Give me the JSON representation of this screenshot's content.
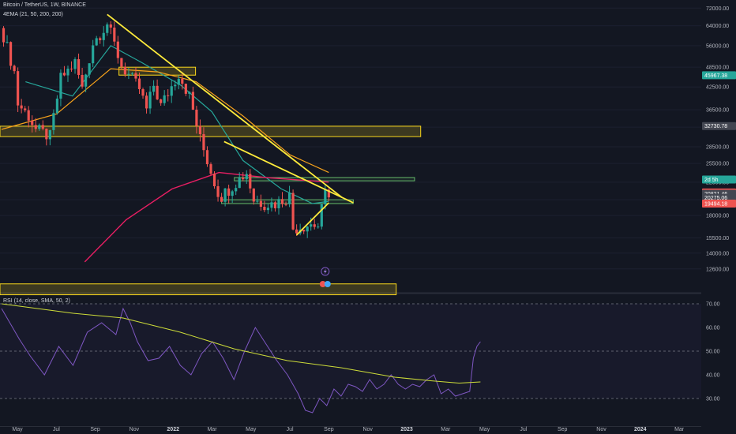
{
  "header": {
    "symbol": "Bitcoin / TetherUS, 1W, BINANCE",
    "ema_label": "4EMA (21, 50, 200, 200)",
    "rsi_label": "RSI (14, close, SMA, 50, 2)"
  },
  "colors": {
    "background": "#131722",
    "up": "#26a69a",
    "down": "#ef5350",
    "trendline": "#ffeb3b",
    "ema21": "#26a69a",
    "ema50": "#f7a21b",
    "ema200": "#e91e63",
    "zone_yellow": "#f9d71c",
    "zone_green": "#66bb6a",
    "rsi_line": "#7e57c2",
    "rsi_ma": "#cddc39"
  },
  "chart_data": [
    {
      "type": "candlestick",
      "title": "Bitcoin / TetherUS, 1W, BINANCE",
      "scale": "log",
      "ylim": [
        10800,
        76000
      ],
      "x_ticks": [
        "May",
        "Jul",
        "Sep",
        "Nov",
        "2022",
        "Mar",
        "May",
        "Jul",
        "Sep",
        "Nov",
        "2023",
        "Mar",
        "May",
        "Jul",
        "Sep",
        "Nov",
        "2024",
        "Mar"
      ],
      "y_ticks": [
        72000,
        64000,
        56000,
        48500,
        42500,
        36500,
        32500,
        28500,
        25500,
        22500,
        20000,
        18000,
        15500,
        14000,
        12600
      ],
      "y_tick_labels": [
        "72000.00",
        "64000.00",
        "56000.00",
        "48500.00",
        "42500.00",
        "36500.00",
        "32500.00",
        "28500.00",
        "25500.00",
        "22500.00",
        "20000.00",
        "18000.00",
        "15500.00",
        "14000.00",
        "12600.00"
      ],
      "price_labels": [
        {
          "value": 45967.38,
          "text": "45967.38",
          "color": "#26a69a"
        },
        {
          "value": 32730.78,
          "text": "32730.78",
          "color": "#434651"
        },
        {
          "value": 22900,
          "text": "2d 5h",
          "color": "#26a69a"
        },
        {
          "value": 21000.63,
          "text": "21000.63",
          "color": "#ef5350"
        },
        {
          "value": 20821.46,
          "text": "20821.46",
          "color": "#434651"
        },
        {
          "value": 20275.06,
          "text": "20275.06",
          "color": "#434651"
        },
        {
          "value": 19494.18,
          "text": "19494.18",
          "color": "#ef5350"
        }
      ],
      "anchors": [
        [
          "2021-04-19",
          60000
        ],
        [
          "2021-05-10",
          47000
        ],
        [
          "2021-05-17",
          38000
        ],
        [
          "2021-06-07",
          35000
        ],
        [
          "2021-06-21",
          32000
        ],
        [
          "2021-07-19",
          30500
        ],
        [
          "2021-08-09",
          45000
        ],
        [
          "2021-09-06",
          50000
        ],
        [
          "2021-09-20",
          42000
        ],
        [
          "2021-10-11",
          57000
        ],
        [
          "2021-11-08",
          65000
        ],
        [
          "2021-12-06",
          49000
        ],
        [
          "2022-01-10",
          42000
        ],
        [
          "2022-01-24",
          36500
        ],
        [
          "2022-02-07",
          43000
        ],
        [
          "2022-02-21",
          37500
        ],
        [
          "2022-03-28",
          46500
        ],
        [
          "2022-04-18",
          40000
        ],
        [
          "2022-05-09",
          30000
        ],
        [
          "2022-06-13",
          21000
        ],
        [
          "2022-06-20",
          20500
        ],
        [
          "2022-07-18",
          22500
        ],
        [
          "2022-08-08",
          24000
        ],
        [
          "2022-08-22",
          20000
        ],
        [
          "2022-09-12",
          19500
        ],
        [
          "2022-10-03",
          19500
        ],
        [
          "2022-10-31",
          20500
        ],
        [
          "2022-11-07",
          16500
        ],
        [
          "2022-12-12",
          17000
        ],
        [
          "2022-12-26",
          16800
        ],
        [
          "2023-01-09",
          20800
        ],
        [
          "2023-01-16",
          21000
        ]
      ],
      "ema_21": [
        [
          "2021-06-01",
          44000
        ],
        [
          "2021-09-01",
          40000
        ],
        [
          "2021-11-15",
          56000
        ],
        [
          "2022-01-15",
          50000
        ],
        [
          "2022-04-01",
          43000
        ],
        [
          "2022-06-01",
          36000
        ],
        [
          "2022-08-01",
          26000
        ],
        [
          "2022-10-15",
          21500
        ],
        [
          "2022-12-15",
          19500
        ],
        [
          "2023-01-16",
          19800
        ]
      ],
      "ema_50": [
        [
          "2021-04-15",
          32000
        ],
        [
          "2021-08-01",
          35500
        ],
        [
          "2021-11-15",
          48000
        ],
        [
          "2022-02-15",
          47000
        ],
        [
          "2022-05-01",
          44000
        ],
        [
          "2022-08-01",
          35000
        ],
        [
          "2022-11-01",
          27000
        ],
        [
          "2023-01-16",
          24000
        ]
      ],
      "ema_200": [
        [
          "2021-09-25",
          13200
        ],
        [
          "2021-12-15",
          17500
        ],
        [
          "2022-03-15",
          21500
        ],
        [
          "2022-06-15",
          24000
        ],
        [
          "2022-09-15",
          23200
        ],
        [
          "2023-01-16",
          22500
        ]
      ],
      "zones": [
        {
          "x": [
            "2021-04-12",
            "2023-07-15"
          ],
          "y": [
            30500,
            32700
          ],
          "color": "yellow"
        },
        {
          "x": [
            "2021-04-12",
            "2023-05-28"
          ],
          "y": [
            10600,
            11400
          ],
          "color": "yellow"
        },
        {
          "x": [
            "2021-12-01",
            "2022-04-30"
          ],
          "y": [
            46000,
            48500
          ],
          "color": "yellow"
        },
        {
          "x": [
            "2022-07-15",
            "2023-07-03"
          ],
          "y": [
            22700,
            23200
          ],
          "color": "green"
        },
        {
          "x": [
            "2022-06-20",
            "2023-03-05"
          ],
          "y": [
            19500,
            20000
          ],
          "color": "green"
        }
      ],
      "trendlines": [
        {
          "from": [
            "2021-11-08",
            69000
          ],
          "to": [
            "2023-02-11",
            20300
          ]
        },
        {
          "from": [
            "2022-06-25",
            29500
          ],
          "to": [
            "2023-03-05",
            19600
          ]
        },
        {
          "from": [
            "2022-11-14",
            15800
          ],
          "to": [
            "2023-01-16",
            19600
          ]
        }
      ]
    },
    {
      "type": "line",
      "title": "RSI (14, close, SMA, 50, 2)",
      "ylim": [
        20,
        74
      ],
      "y_ticks": [
        70,
        60,
        50,
        40,
        30
      ],
      "y_tick_labels": [
        "70.00",
        "60.00",
        "50.00",
        "40.00",
        "30.00"
      ],
      "band": [
        30,
        70
      ],
      "rsi": [
        [
          0,
          68
        ],
        [
          5,
          55
        ],
        [
          8,
          48
        ],
        [
          12,
          40
        ],
        [
          16,
          52
        ],
        [
          20,
          44
        ],
        [
          24,
          58
        ],
        [
          28,
          62
        ],
        [
          32,
          57
        ],
        [
          34,
          68
        ],
        [
          36,
          62
        ],
        [
          38,
          54
        ],
        [
          41,
          46
        ],
        [
          44,
          47
        ],
        [
          47,
          52
        ],
        [
          50,
          44
        ],
        [
          53,
          40
        ],
        [
          56,
          49
        ],
        [
          59,
          54
        ],
        [
          62,
          47
        ],
        [
          65,
          38
        ],
        [
          68,
          50
        ],
        [
          71,
          60
        ],
        [
          74,
          53
        ],
        [
          77,
          46
        ],
        [
          80,
          40
        ],
        [
          83,
          32
        ],
        [
          85,
          25
        ],
        [
          87,
          24
        ],
        [
          89,
          30
        ],
        [
          91,
          27
        ],
        [
          93,
          34
        ],
        [
          95,
          31
        ],
        [
          97,
          36
        ],
        [
          99,
          35
        ],
        [
          101,
          33
        ],
        [
          103,
          38
        ],
        [
          105,
          34
        ],
        [
          107,
          36
        ],
        [
          109,
          40
        ],
        [
          111,
          36
        ],
        [
          113,
          34
        ],
        [
          115,
          36
        ],
        [
          117,
          35
        ],
        [
          119,
          38
        ],
        [
          121,
          40
        ],
        [
          123,
          32
        ],
        [
          125,
          34
        ],
        [
          127,
          31
        ],
        [
          129,
          32
        ],
        [
          131,
          33
        ],
        [
          132,
          47
        ],
        [
          133,
          52
        ],
        [
          134,
          54
        ]
      ],
      "rsi_ma": [
        [
          0,
          70
        ],
        [
          10,
          68
        ],
        [
          20,
          66
        ],
        [
          34,
          64
        ],
        [
          50,
          58
        ],
        [
          65,
          51
        ],
        [
          80,
          46
        ],
        [
          95,
          43
        ],
        [
          110,
          39
        ],
        [
          120,
          37.5
        ],
        [
          128,
          36.5
        ],
        [
          134,
          37
        ]
      ]
    }
  ]
}
